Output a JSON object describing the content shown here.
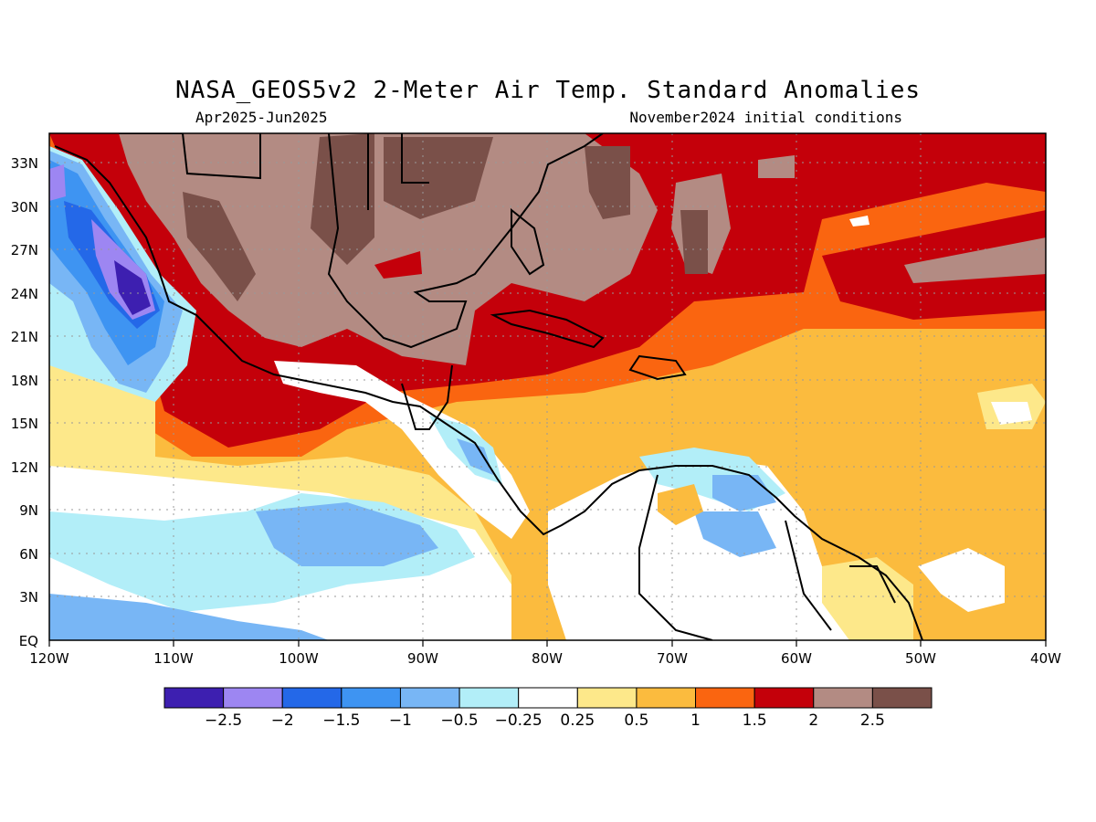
{
  "title": "NASA_GEOS5v2 2-Meter Air Temp. Standard Anomalies",
  "subtitle_left": "Apr2025-Jun2025",
  "subtitle_right": "November2024 initial conditions",
  "map": {
    "lon_labels": [
      "120W",
      "110W",
      "100W",
      "90W",
      "80W",
      "70W",
      "60W",
      "50W",
      "40W"
    ],
    "lat_labels": [
      "EQ",
      "3N",
      "6N",
      "9N",
      "12N",
      "15N",
      "18N",
      "21N",
      "24N",
      "27N",
      "30N",
      "33N"
    ],
    "lon_range": [
      -120,
      -40
    ],
    "lat_range": [
      0,
      35
    ],
    "grid": true
  },
  "colorbar": {
    "colors": [
      "#3d1fb0",
      "#9d86f2",
      "#2468e8",
      "#3e94f2",
      "#78b6f5",
      "#b2eef8",
      "#ffffff",
      "#fde88a",
      "#fbbb3e",
      "#fa6510",
      "#c4000a",
      "#b38b83",
      "#7a5049"
    ],
    "labels": [
      "-2.5",
      "-2",
      "-1.5",
      "-1",
      "-0.5",
      "-0.25",
      "0.25",
      "0.5",
      "1",
      "1.5",
      "2",
      "2.5"
    ]
  }
}
